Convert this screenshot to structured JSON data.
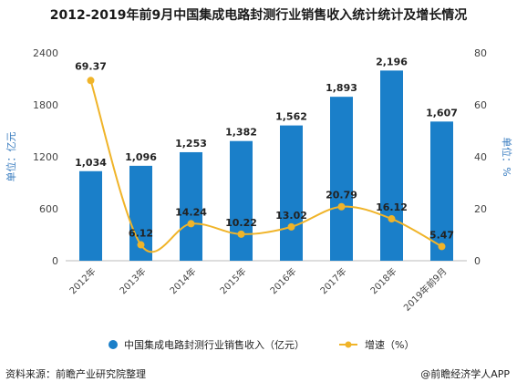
{
  "chart_data": {
    "type": "bar",
    "title": "2012-2019年前9月中国集成电路封测行业销售收入统计统计及增长情况",
    "categories": [
      "2012年",
      "2013年",
      "2014年",
      "2015年",
      "2016年",
      "2017年",
      "2018年",
      "2019年前9月"
    ],
    "series": [
      {
        "name": "中国集成电路封测行业销售收入（亿元）",
        "type": "bar",
        "axis": "left",
        "values": [
          1034,
          1096,
          1253,
          1382,
          1562,
          1893,
          2196,
          1607
        ],
        "labels": [
          "1,034",
          "1,096",
          "1,253",
          "1,382",
          "1,562",
          "1,893",
          "2,196",
          "1,607"
        ]
      },
      {
        "name": "增速（%）",
        "type": "line",
        "axis": "right",
        "values": [
          69.37,
          6.12,
          14.24,
          10.22,
          13.02,
          20.79,
          16.12,
          5.47
        ],
        "labels": [
          "69.37",
          "6.12",
          "14.24",
          "10.22",
          "13.02",
          "20.79",
          "16.12",
          "5.47"
        ]
      }
    ],
    "ylabel": "单位：亿元",
    "y2label": "单位：%",
    "ylim": [
      0,
      2400
    ],
    "y2lim": [
      0,
      80
    ],
    "yticks": [
      "0",
      "600",
      "1200",
      "1800",
      "2400"
    ],
    "y2ticks": [
      "0",
      "20",
      "40",
      "60",
      "80"
    ],
    "grid": false,
    "legend": "bottom",
    "colors": {
      "bar": "#1a7fc9",
      "line": "#f0b429"
    }
  },
  "footer": {
    "source": "资料来源：前瞻产业研究院整理",
    "brand": "@前瞻经济学人APP"
  }
}
